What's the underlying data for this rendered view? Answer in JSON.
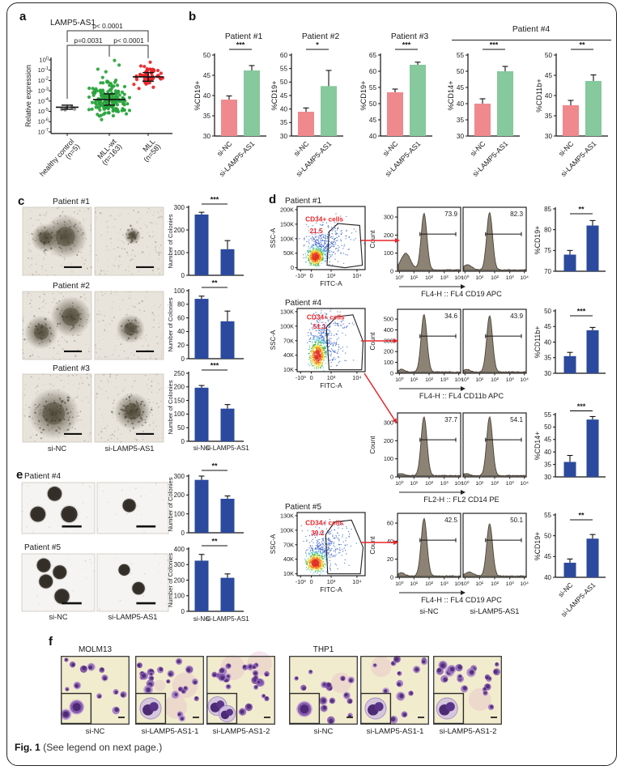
{
  "colors": {
    "pink": "#F0898D",
    "green": "#85C99C",
    "blue": "#2B4A9E",
    "red_accent": "#E8252A",
    "dot_gray": "#8C8C8C",
    "dot_green": "#27A33B",
    "dot_red": "#E62428",
    "hist_fill": "#8D8374",
    "stain_bg": "#F2ECCE"
  },
  "panels": {
    "a": {
      "label": "a"
    },
    "b": {
      "label": "b",
      "group4_title": "Patient #4"
    },
    "c": {
      "label": "c",
      "row_titles": [
        "Patient #1",
        "Patient #2",
        "Patient #3"
      ],
      "img_labels": [
        "si-NC",
        "si-LAMP5-AS1"
      ]
    },
    "d": {
      "label": "d"
    },
    "e": {
      "label": "e",
      "row_titles": [
        "Patient #4",
        "Patient #5"
      ],
      "img_labels": [
        "si-NC",
        "si-LAMP5-AS1"
      ]
    },
    "f": {
      "label": "f",
      "groups": [
        {
          "title": "MOLM13",
          "img_labels": [
            "si-NC",
            "si-LAMP5-AS1-1",
            "si-LAMP5-AS1-2"
          ]
        },
        {
          "title": "THP1",
          "img_labels": [
            "si-NC",
            "si-LAMP5-AS1-1",
            "si-LAMP5-AS1-2"
          ]
        }
      ]
    },
    "caption": {
      "bold": "Fig. 1",
      "rest": " (See legend on next page.)"
    }
  },
  "chart_data": {
    "panel_a": {
      "type": "scatter",
      "title": "LAMP5-AS1",
      "ylabel": "Relative expression",
      "ytick_exponents": [
        0,
        -1,
        -2,
        -3,
        -4,
        -5,
        -6,
        -7
      ],
      "comparisons": [
        {
          "groups": [
            0,
            2
          ],
          "label": "p< 0.0001"
        },
        {
          "groups": [
            0,
            1
          ],
          "label": "p=0.0031"
        },
        {
          "groups": [
            1,
            2
          ],
          "label": "p< 0.0001"
        }
      ],
      "groups": [
        {
          "name": "healthy control",
          "n_label": "(n=5)",
          "n": 5,
          "color": "#8C8C8C",
          "median_exp": -4.6,
          "sd": 0.12,
          "whisker": 0.2,
          "outliers": []
        },
        {
          "name": "MLL-wt",
          "n_label": "(n=163)",
          "n": 163,
          "color": "#27A33B",
          "median_exp": -3.85,
          "sd": 0.95,
          "whisker": 0.55,
          "outliers": [
            -0.05,
            -0.5,
            -0.9,
            -1.15
          ]
        },
        {
          "name": "MLL",
          "n_label": "(n=58)",
          "n": 58,
          "color": "#E62428",
          "median_exp": -1.65,
          "sd": 0.5,
          "whisker": 0.42,
          "outliers": [
            -0.22
          ]
        }
      ]
    },
    "bars": {
      "b1": {
        "type": "bar",
        "title": "Patient #1",
        "ylabel": "%CD19+",
        "ylim": [
          30,
          50
        ],
        "step": 5,
        "categories": [
          "si-NC",
          "si-LAMP5-AS1"
        ],
        "values": [
          39,
          46.2
        ],
        "errors": [
          0.9,
          1.2
        ],
        "sig": "***",
        "palette": "pg"
      },
      "b2": {
        "type": "bar",
        "title": "Patient #2",
        "ylabel": "%CD19+",
        "ylim": [
          30,
          60
        ],
        "step": 5,
        "categories": [
          "si-NC",
          "si-LAMP5-AS1"
        ],
        "values": [
          39,
          48.5
        ],
        "errors": [
          1.4,
          5.8
        ],
        "sig": "*",
        "palette": "pg"
      },
      "b3": {
        "type": "bar",
        "title": "Patient #3",
        "ylabel": "%CD19+",
        "ylim": [
          40,
          65
        ],
        "step": 5,
        "categories": [
          "si-NC",
          "si-LAMP5-AS1"
        ],
        "values": [
          53.5,
          62
        ],
        "errors": [
          1,
          0.8
        ],
        "sig": "***",
        "palette": "pg"
      },
      "b4": {
        "type": "bar",
        "ylabel": "%CD14+",
        "ylim": [
          30,
          55
        ],
        "step": 5,
        "categories": [
          "si-NC",
          "si-LAMP5-AS1"
        ],
        "values": [
          40,
          50
        ],
        "errors": [
          1.5,
          1.5
        ],
        "sig": "***",
        "palette": "pg"
      },
      "b5": {
        "type": "bar",
        "ylabel": "%CD11b+",
        "ylim": [
          30,
          50
        ],
        "step": 5,
        "categories": [
          "si-NC",
          "si-LAMP5-AS1"
        ],
        "values": [
          37.6,
          43.6
        ],
        "errors": [
          1.2,
          1.5
        ],
        "sig": "**",
        "palette": "pg"
      },
      "c1": {
        "type": "bar",
        "ylabel": "Number of Colonies",
        "ylim": [
          0,
          300
        ],
        "step": 100,
        "categories": [
          "si-NC",
          "si-LAMP5-AS1"
        ],
        "values": [
          268,
          115
        ],
        "errors": [
          10,
          38
        ],
        "sig": "***",
        "palette": "blue"
      },
      "c2": {
        "type": "bar",
        "ylabel": "Number of Colonies",
        "ylim": [
          0,
          100
        ],
        "step": 20,
        "categories": [
          "si-NC",
          "si-LAMP5-AS1"
        ],
        "values": [
          88,
          55
        ],
        "errors": [
          4,
          15
        ],
        "sig": "**",
        "palette": "blue"
      },
      "c3": {
        "type": "bar",
        "ylabel": "Number of Colonies",
        "ylim": [
          0,
          250
        ],
        "step": 50,
        "categories": [
          "si-NC",
          "si-LAMP5-AS1"
        ],
        "values": [
          197,
          120
        ],
        "errors": [
          8,
          15
        ],
        "sig": "***",
        "palette": "blue"
      },
      "d1": {
        "type": "bar",
        "ylabel": "%CD19+",
        "ylim": [
          70,
          85
        ],
        "step": 5,
        "categories": [
          "si-NC",
          "si-LAMP5-AS1"
        ],
        "values": [
          74,
          81
        ],
        "errors": [
          1,
          1.2
        ],
        "sig": "**",
        "palette": "blue"
      },
      "d2": {
        "type": "bar",
        "ylabel": "%CD11b+",
        "ylim": [
          30,
          50
        ],
        "step": 5,
        "categories": [
          "si-NC",
          "si-LAMP5-AS1"
        ],
        "values": [
          35.5,
          43.8
        ],
        "errors": [
          1.2,
          0.9
        ],
        "sig": "***",
        "palette": "blue"
      },
      "d3": {
        "type": "bar",
        "ylabel": "%CD14+",
        "ylim": [
          30,
          55
        ],
        "step": 5,
        "categories": [
          "si-NC",
          "si-LAMP5-AS1"
        ],
        "values": [
          36,
          53
        ],
        "errors": [
          2.6,
          1.2
        ],
        "sig": "***",
        "palette": "blue"
      },
      "d4": {
        "type": "bar",
        "ylabel": "%CD19+",
        "ylim": [
          40,
          55
        ],
        "step": 5,
        "categories": [
          "si-NC",
          "si-LAMP5-AS1"
        ],
        "values": [
          43.5,
          49.3
        ],
        "errors": [
          0.9,
          1
        ],
        "sig": "**",
        "palette": "blue"
      },
      "e1": {
        "type": "bar",
        "ylabel": "Number of Colonies",
        "ylim": [
          0,
          300
        ],
        "step": 100,
        "categories": [
          "si-NC",
          "si-LAMP5-AS1"
        ],
        "values": [
          280,
          180
        ],
        "errors": [
          20,
          15
        ],
        "sig": "**",
        "palette": "blue"
      },
      "e2": {
        "type": "bar",
        "ylabel": "Number of Colonies",
        "ylim": [
          0,
          400
        ],
        "step": 100,
        "categories": [
          "si-NC",
          "si-LAMP5-AS1"
        ],
        "values": [
          325,
          215
        ],
        "errors": [
          40,
          25
        ],
        "sig": "**",
        "palette": "blue"
      }
    },
    "flow_rows": [
      {
        "type": "flow-row",
        "patient": "Patient #1",
        "gate_label": "CD34+ cells",
        "gate_pct": "21.5",
        "ssc_ticks": [
          "200K",
          "150K",
          "100K",
          "50K",
          "0"
        ],
        "fitc_ticks": [
          "-10³",
          "0",
          "10³",
          "10⁴"
        ],
        "xlabel": "FITC-A",
        "ylabel": "SSC-A",
        "count_label": "Count",
        "count_ticks": [
          0,
          100,
          200,
          300
        ],
        "hist_pcts": [
          "73.9",
          "82.3"
        ],
        "hist_xticks": [
          "10⁰",
          "10¹",
          "10²",
          "10³",
          "10⁴"
        ],
        "axis_label": "FL4-H :: FL4 CD19 APC"
      },
      {
        "type": "flow-row",
        "patient": "Patient #4",
        "gate_label": "CD34+ cells",
        "gate_pct": "51.1",
        "ssc_ticks": [
          "130K",
          "100K",
          "70K",
          "40K",
          "10K"
        ],
        "fitc_ticks": [
          "-10³",
          "0",
          "10³",
          "10⁴"
        ],
        "xlabel": "FITC-A",
        "ylabel": "SSC-A",
        "count_label": "Count",
        "count_ticks": [
          0,
          100,
          200,
          300,
          400,
          500
        ],
        "hist_pcts": [
          "34.6",
          "43.9"
        ],
        "hist_xticks": [
          "10⁰",
          "10¹",
          "10²",
          "10³",
          "10⁴"
        ],
        "axis_label": "FL4-H :: FL4 CD11b APC"
      },
      {
        "type": "flow-row",
        "count_label": "Count",
        "count_ticks": [
          0,
          100,
          200,
          300
        ],
        "hist_pcts": [
          "37.7",
          "54.1"
        ],
        "hist_xticks": [
          "10⁰",
          "10¹",
          "10²",
          "10³",
          "10⁴"
        ],
        "axis_label": "FL2-H :: FL2 CD14 PE"
      },
      {
        "type": "flow-row",
        "patient": "Patient #5",
        "gate_label": "CD34+ cells",
        "gate_pct": "39.2",
        "ssc_ticks": [
          "130K",
          "100K",
          "70K",
          "40K",
          "10K"
        ],
        "fitc_ticks": [
          "-10³",
          "0",
          "10³",
          "10⁴"
        ],
        "xlabel": "FITC-A",
        "ylabel": "SSC-A",
        "count_label": "Count",
        "count_ticks": [
          0,
          20,
          40,
          60
        ],
        "hist_pcts": [
          "42.5",
          "50.1"
        ],
        "hist_xticks": [
          "10⁰",
          "10¹",
          "10²",
          "10³",
          "10⁴"
        ],
        "axis_label": "FL4-H :: FL4 CD19 APC",
        "col_labels": [
          "si-NC",
          "si-LAMP5-AS1"
        ]
      }
    ]
  }
}
